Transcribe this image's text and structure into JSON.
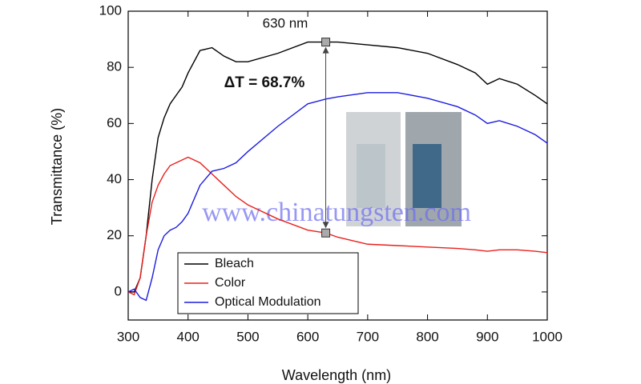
{
  "chart_data": {
    "type": "line",
    "x_label": "Wavelength (nm)",
    "y_label": "Transmittance (%)",
    "x": [
      300,
      310,
      320,
      330,
      340,
      350,
      360,
      370,
      380,
      390,
      400,
      420,
      440,
      460,
      480,
      500,
      550,
      600,
      630,
      650,
      700,
      750,
      800,
      850,
      880,
      900,
      920,
      950,
      980,
      1000
    ],
    "series": [
      {
        "name": "Bleach",
        "color": "#000000",
        "values": [
          0,
          0,
          5,
          20,
          40,
          55,
          62,
          67,
          70,
          73,
          78,
          86,
          87,
          84,
          82,
          82,
          85,
          89,
          89,
          89,
          88,
          87,
          85,
          81,
          78,
          74,
          76,
          74,
          70,
          67
        ]
      },
      {
        "name": "Color",
        "color": "#e8201c",
        "values": [
          0,
          -1,
          5,
          20,
          32,
          38,
          42,
          45,
          46,
          47,
          48,
          46,
          42,
          38,
          34,
          31,
          26,
          22,
          21,
          19.5,
          17,
          16.5,
          16,
          15.5,
          15,
          14.5,
          15,
          15,
          14.5,
          14
        ]
      },
      {
        "name": "Optical Modulation",
        "color": "#1c1ce0",
        "values": [
          0,
          1,
          -2,
          -3,
          5,
          15,
          20,
          22,
          23,
          25,
          28,
          38,
          43,
          44,
          46,
          50,
          59,
          67,
          68.7,
          69.5,
          71,
          71,
          69,
          66,
          63,
          60,
          61,
          59,
          56,
          53
        ]
      }
    ],
    "xlim": [
      300,
      1000
    ],
    "xticks": [
      300,
      400,
      500,
      600,
      700,
      800,
      900,
      1000
    ],
    "ylim": [
      -10,
      100
    ],
    "yticks": [
      0,
      20,
      40,
      60,
      80,
      100
    ],
    "legend": "lower-left",
    "annotation_x": 630,
    "annotation_values": [
      89,
      21
    ],
    "annotation_x_label": "630 nm",
    "annotation_text": "ΔT = 68.7%",
    "watermark": "www.chinatungsten.com"
  }
}
